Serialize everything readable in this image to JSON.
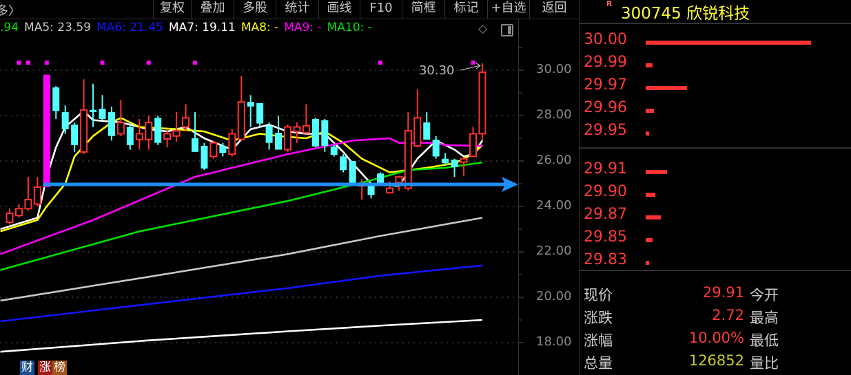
{
  "topbar": {
    "crumb": "多〉",
    "buttons": [
      "复权",
      "叠加",
      "多股",
      "统计",
      "画线",
      "F10",
      "简框",
      "标记",
      "+自选",
      "返回"
    ]
  },
  "legend": {
    "items": [
      {
        "text": ".94",
        "color": "#00e000"
      },
      {
        "text": "MA5: 23.59",
        "color": "#c8c8c8"
      },
      {
        "text": "MA6: 21.45",
        "color": "#1414ff"
      },
      {
        "text": "MA7: 19.11",
        "color": "#ffffff"
      },
      {
        "text": "MA8: -",
        "color": "#ffff00"
      },
      {
        "text": "MA9: -",
        "color": "#ff00ff"
      },
      {
        "text": "MA10: -",
        "color": "#00e000"
      }
    ],
    "icons": [
      "diamond-icon",
      "panel-toggle-icon"
    ]
  },
  "chart_data": {
    "type": "candlestick",
    "y_ticks": [
      "30.00",
      "28.00",
      "26.00",
      "24.00",
      "22.00",
      "20.00",
      "18.00"
    ],
    "y_tick_values": [
      30,
      28,
      26,
      24,
      22,
      20,
      18
    ],
    "ylim": [
      17.4,
      31.2
    ],
    "grid": "dotted",
    "up_color": "#ff3232",
    "down_color": "#54ffff",
    "limit_up_color": "#ff00ff",
    "candles": [
      [
        23.3,
        23.9,
        23.2,
        23.7
      ],
      [
        23.6,
        24.1,
        23.5,
        23.9
      ],
      [
        23.9,
        25.3,
        23.8,
        24.3
      ],
      [
        24.1,
        25.3,
        24.0,
        24.85
      ],
      [
        24.85,
        29.8,
        24.85,
        29.8
      ],
      [
        29.24,
        29.3,
        27.85,
        28.2
      ],
      [
        28.15,
        28.45,
        27.2,
        27.4
      ],
      [
        27.6,
        27.7,
        26.4,
        26.7
      ],
      [
        26.4,
        29.6,
        26.3,
        28.25
      ],
      [
        28.25,
        29.4,
        27.5,
        28.15
      ],
      [
        28.3,
        28.9,
        27.8,
        27.85
      ],
      [
        28.15,
        28.4,
        26.9,
        27.1
      ],
      [
        27.2,
        28.7,
        27.1,
        27.7
      ],
      [
        27.5,
        27.7,
        26.5,
        26.7
      ],
      [
        26.95,
        27.85,
        26.5,
        27.2
      ],
      [
        26.95,
        28.0,
        26.5,
        27.7
      ],
      [
        27.9,
        28.0,
        26.7,
        26.8
      ],
      [
        26.97,
        27.4,
        26.6,
        27.2
      ],
      [
        27.1,
        28.15,
        26.85,
        27.33
      ],
      [
        27.5,
        28.5,
        27.3,
        27.9
      ],
      [
        27.0,
        28.15,
        26.4,
        26.4
      ],
      [
        26.67,
        26.8,
        25.6,
        25.67
      ],
      [
        26.2,
        26.9,
        26.1,
        26.8
      ],
      [
        26.67,
        26.8,
        26.2,
        26.36
      ],
      [
        26.3,
        27.4,
        26.2,
        27.2
      ],
      [
        26.95,
        29.75,
        26.9,
        28.6
      ],
      [
        28.6,
        28.9,
        27.5,
        28.4
      ],
      [
        28.55,
        28.55,
        27.5,
        27.65
      ],
      [
        27.55,
        27.7,
        26.5,
        26.8
      ],
      [
        27.24,
        28.0,
        26.5,
        26.5
      ],
      [
        26.5,
        27.6,
        26.4,
        27.5
      ],
      [
        27.3,
        27.7,
        26.8,
        27.5
      ],
      [
        27.24,
        28.5,
        27.2,
        27.55
      ],
      [
        27.85,
        27.9,
        26.6,
        26.64
      ],
      [
        27.8,
        27.85,
        26.4,
        26.67
      ],
      [
        26.64,
        26.7,
        26.2,
        26.27
      ],
      [
        26.2,
        26.3,
        25.5,
        25.6
      ],
      [
        26.0,
        26.0,
        25.0,
        25.0
      ],
      [
        24.9,
        25.2,
        24.3,
        25.0
      ],
      [
        24.9,
        24.95,
        24.35,
        24.5
      ],
      [
        25.45,
        25.5,
        24.9,
        25.0
      ],
      [
        24.6,
        25.1,
        24.6,
        24.8
      ],
      [
        25.05,
        25.35,
        24.7,
        25.3
      ],
      [
        24.8,
        28.15,
        24.7,
        27.33
      ],
      [
        26.67,
        29.15,
        26.6,
        27.9
      ],
      [
        27.7,
        28.15,
        26.94,
        26.94
      ],
      [
        26.94,
        27.1,
        26.1,
        26.2
      ],
      [
        26.1,
        26.35,
        25.8,
        25.9
      ],
      [
        26.06,
        26.1,
        25.3,
        25.73
      ],
      [
        25.95,
        26.1,
        25.35,
        26.1
      ],
      [
        26.2,
        27.5,
        26.2,
        27.2
      ],
      [
        27.2,
        30.3,
        26.9,
        29.91
      ]
    ],
    "limit_up_index": 4,
    "signal_marks": [
      1,
      2,
      4,
      10,
      15,
      20,
      40,
      50
    ],
    "ma_lines": [
      {
        "color": "#ffffff",
        "points": [
          [
            -1,
            23.0
          ],
          [
            3,
            23.5
          ],
          [
            4,
            25.3
          ],
          [
            5,
            26.6
          ],
          [
            6,
            27.5
          ],
          [
            8,
            28.2
          ],
          [
            9,
            27.8
          ],
          [
            12,
            27.7
          ],
          [
            15,
            27.4
          ],
          [
            17,
            27.3
          ],
          [
            19,
            27.5
          ],
          [
            21,
            27.0
          ],
          [
            24,
            26.5
          ],
          [
            26,
            27.4
          ],
          [
            28,
            27.6
          ],
          [
            30,
            27.3
          ],
          [
            32,
            27.2
          ],
          [
            34,
            27.2
          ],
          [
            36,
            26.4
          ],
          [
            37,
            25.9
          ],
          [
            39,
            25.0
          ],
          [
            42,
            24.9
          ],
          [
            44,
            26.1
          ],
          [
            46,
            26.9
          ],
          [
            48,
            26.5
          ],
          [
            49,
            26.2
          ],
          [
            50,
            26.3
          ],
          [
            51,
            26.9
          ]
        ]
      },
      {
        "color": "#ffff00",
        "points": [
          [
            -1,
            22.9
          ],
          [
            3,
            23.4
          ],
          [
            4,
            24.0
          ],
          [
            6,
            25.0
          ],
          [
            7,
            26.2
          ],
          [
            9,
            27.1
          ],
          [
            11,
            27.7
          ],
          [
            12,
            27.9
          ],
          [
            14,
            27.5
          ],
          [
            18,
            27.4
          ],
          [
            21,
            27.3
          ],
          [
            24,
            26.9
          ],
          [
            27,
            27.2
          ],
          [
            29,
            27.1
          ],
          [
            32,
            27.0
          ],
          [
            34,
            27.3
          ],
          [
            36,
            26.8
          ],
          [
            38,
            26.1
          ],
          [
            41,
            25.5
          ],
          [
            45,
            25.7
          ],
          [
            48,
            25.9
          ],
          [
            50,
            26.3
          ],
          [
            51,
            26.7
          ]
        ]
      },
      {
        "color": "#ff00ff",
        "points": [
          [
            -1,
            21.9
          ],
          [
            9,
            23.4
          ],
          [
            20,
            25.3
          ],
          [
            30,
            26.3
          ],
          [
            37,
            26.9
          ],
          [
            41,
            27.0
          ],
          [
            42,
            26.8
          ],
          [
            46,
            26.8
          ],
          [
            47,
            26.7
          ],
          [
            51,
            26.67
          ]
        ]
      },
      {
        "color": "#00e000",
        "points": [
          [
            -1,
            21.2
          ],
          [
            14,
            22.9
          ],
          [
            30,
            24.24
          ],
          [
            39,
            25.15
          ],
          [
            43,
            25.6
          ],
          [
            47,
            25.7
          ],
          [
            51,
            25.94
          ]
        ]
      },
      {
        "color": "#c8c8c8",
        "points": [
          [
            -1,
            19.85
          ],
          [
            15,
            20.9
          ],
          [
            30,
            21.9
          ],
          [
            40,
            22.7
          ],
          [
            51,
            23.5
          ]
        ]
      },
      {
        "color": "#1414ff",
        "points": [
          [
            -1,
            18.94
          ],
          [
            15,
            19.7
          ],
          [
            30,
            20.4
          ],
          [
            40,
            20.95
          ],
          [
            51,
            21.4
          ]
        ]
      },
      {
        "color": "#ffffff",
        "points": [
          [
            -1,
            17.6
          ],
          [
            15,
            18.1
          ],
          [
            30,
            18.5
          ],
          [
            40,
            18.75
          ],
          [
            51,
            19.0
          ]
        ]
      }
    ],
    "high_label": "30.30",
    "trend_arrow": {
      "price": 24.97,
      "start_index": 3.6,
      "color": "#1e90ff"
    }
  },
  "right_panel": {
    "code_badge": "R",
    "title": "300745 欣锐科技",
    "asks": [
      {
        "price": "30.00",
        "fraction": 1.0
      },
      {
        "price": "29.99",
        "fraction": 0.04
      },
      {
        "price": "29.97",
        "fraction": 0.25
      },
      {
        "price": "29.96",
        "fraction": 0.05
      },
      {
        "price": "29.95",
        "fraction": 0.02
      }
    ],
    "bids": [
      {
        "price": "29.91",
        "fraction": 0.13
      },
      {
        "price": "29.90",
        "fraction": 0.06
      },
      {
        "price": "29.87",
        "fraction": 0.09
      },
      {
        "price": "29.85",
        "fraction": 0.04
      },
      {
        "price": "29.83",
        "fraction": 0.02
      }
    ],
    "stats": [
      {
        "label": "现价",
        "value": "29.91",
        "color": "#ff3b3b",
        "label2": "今开"
      },
      {
        "label": "涨跌",
        "value": "2.72",
        "color": "#ff3b3b",
        "label2": "最高"
      },
      {
        "label": "涨幅",
        "value": "10.00%",
        "color": "#ff3b3b",
        "label2": "最低"
      },
      {
        "label": "总量",
        "value": "126852",
        "color": "#c8c832",
        "label2": "量比"
      }
    ]
  },
  "badges": [
    {
      "text": "财",
      "color": "#1d4f8f"
    },
    {
      "text": "涨",
      "color": "#a01818"
    },
    {
      "text": "榜",
      "color": "#a0561a"
    }
  ]
}
